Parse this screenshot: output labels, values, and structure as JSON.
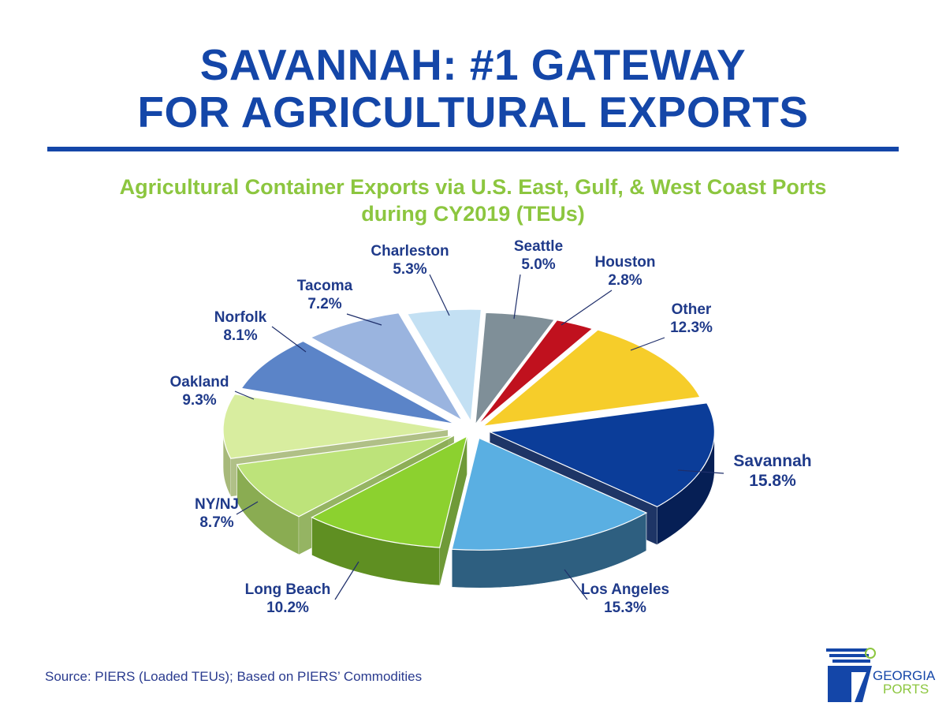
{
  "title": {
    "line1": "SAVANNAH: #1 GATEWAY",
    "line2": "FOR AGRICULTURAL EXPORTS"
  },
  "subtitle": {
    "line1": "Agricultural Container Exports via U.S. East, Gulf, & West Coast Ports",
    "line2": "during CY2019 (TEUs)"
  },
  "source": "Source: PIERS (Loaded TEUs); Based on PIERS’ Commodities",
  "logo": {
    "line1": "GEORGIA",
    "line2": "PORTS"
  },
  "chart_data": {
    "type": "pie",
    "title": "Agricultural Container Exports via U.S. East, Gulf, & West Coast Ports during CY2019 (TEUs)",
    "unit": "%",
    "slices": [
      {
        "name": "Savannah",
        "label": "15.8%",
        "value": 15.8,
        "color": "#0b3d99",
        "side": "#061f55"
      },
      {
        "name": "Los Angeles",
        "label": "15.3%",
        "value": 15.3,
        "color": "#5aafe2",
        "side": "#2e5f80"
      },
      {
        "name": "Long Beach",
        "label": "10.2%",
        "value": 10.2,
        "color": "#8cd12f",
        "side": "#5f8f22"
      },
      {
        "name": "NY/NJ",
        "label": "8.7%",
        "value": 8.7,
        "color": "#bde37a",
        "side": "#8aac52"
      },
      {
        "name": "Oakland",
        "label": "9.3%",
        "value": 9.3,
        "color": "#d8ed9f",
        "side": "#a7b97a"
      },
      {
        "name": "Norfolk",
        "label": "8.1%",
        "value": 8.1,
        "color": "#5b84c8",
        "side": "#3b5a8c"
      },
      {
        "name": "Tacoma",
        "label": "7.2%",
        "value": 7.2,
        "color": "#9ab4df",
        "side": "#6b7fa3"
      },
      {
        "name": "Charleston",
        "label": "5.3%",
        "value": 5.3,
        "color": "#c3e0f3",
        "side": "#8ba5b6"
      },
      {
        "name": "Seattle",
        "label": "5.0%",
        "value": 5.0,
        "color": "#7f8f98",
        "side": "#4f5a60"
      },
      {
        "name": "Houston",
        "label": "2.8%",
        "value": 2.8,
        "color": "#c0111e",
        "side": "#7a0a12"
      },
      {
        "name": "Other",
        "label": "12.3%",
        "value": 12.3,
        "color": "#f6cd2a",
        "side": "#b08f12"
      }
    ]
  }
}
